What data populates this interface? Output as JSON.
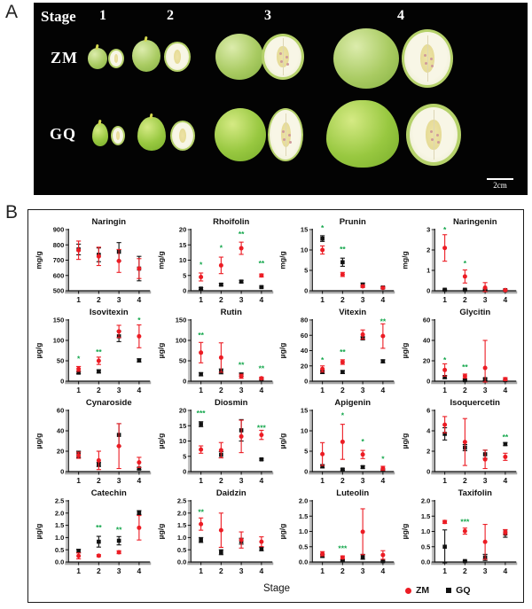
{
  "panel_a": {
    "label": "A",
    "header": "Stage",
    "stage_labels": [
      "1",
      "2",
      "3",
      "4"
    ],
    "rows": [
      {
        "label": "ZM"
      },
      {
        "label": "GQ"
      }
    ],
    "scale_bar": "2cm"
  },
  "panel_b": {
    "label": "B",
    "xlabel": "Stage",
    "legend": [
      {
        "label": "ZM",
        "marker": "circle",
        "color": "#ec1c24"
      },
      {
        "label": "GQ",
        "marker": "square",
        "color": "#111111"
      }
    ]
  },
  "colors": {
    "zm": "#ec1c24",
    "gq": "#111111",
    "significance": "#0fa548"
  },
  "chart_data": [
    {
      "type": "point-errorbar",
      "title": "Naringin",
      "ylabel": "mg/g",
      "ylim": [
        500,
        900
      ],
      "yticks": [
        "500",
        "600",
        "700",
        "800",
        "900"
      ],
      "x": [
        "1",
        "2",
        "3",
        "4"
      ],
      "series": [
        {
          "name": "ZM",
          "values": [
            765,
            725,
            695,
            645
          ],
          "errors": [
            60,
            60,
            75,
            65
          ]
        },
        {
          "name": "GQ",
          "values": [
            770,
            735,
            755,
            645
          ],
          "errors": [
            35,
            45,
            60,
            80
          ]
        }
      ],
      "significance": []
    },
    {
      "type": "point-errorbar",
      "title": "Rhoifolin",
      "ylabel": "mg/g",
      "ylim": [
        0,
        20
      ],
      "yticks": [
        "0",
        "5",
        "10",
        "15",
        "20"
      ],
      "x": [
        "1",
        "2",
        "3",
        "4"
      ],
      "series": [
        {
          "name": "ZM",
          "values": [
            4.5,
            8.3,
            13.9,
            5.0
          ],
          "errors": [
            1.3,
            2.7,
            2.0,
            0.5
          ]
        },
        {
          "name": "GQ",
          "values": [
            0.7,
            2.0,
            3.0,
            1.2
          ],
          "errors": [
            0.3,
            0.4,
            0.4,
            0.3
          ]
        }
      ],
      "significance": [
        {
          "stage": 1,
          "text": "*",
          "y": 8.5
        },
        {
          "stage": 2,
          "text": "*",
          "y": 14
        },
        {
          "stage": 3,
          "text": "**",
          "y": 18.5
        },
        {
          "stage": 4,
          "text": "**",
          "y": 9
        }
      ]
    },
    {
      "type": "point-errorbar",
      "title": "Prunin",
      "ylabel": "mg/g",
      "ylim": [
        0,
        15
      ],
      "yticks": [
        "0",
        "5",
        "10",
        "15"
      ],
      "x": [
        "1",
        "2",
        "3",
        "4"
      ],
      "series": [
        {
          "name": "ZM",
          "values": [
            10,
            4,
            1.1,
            0.7
          ],
          "errors": [
            1.0,
            0.5,
            0.3,
            0.2
          ]
        },
        {
          "name": "GQ",
          "values": [
            12.8,
            7.0,
            1.5,
            0.8
          ],
          "errors": [
            0.7,
            1.0,
            0.4,
            0.2
          ]
        }
      ],
      "significance": [
        {
          "stage": 1,
          "text": "*",
          "y": 15.4
        },
        {
          "stage": 2,
          "text": "**",
          "y": 10.2
        }
      ]
    },
    {
      "type": "point-errorbar",
      "title": "Naringenin",
      "ylabel": "mg/g",
      "ylim": [
        0,
        3
      ],
      "yticks": [
        "0",
        "1",
        "2",
        "3"
      ],
      "x": [
        "1",
        "2",
        "3",
        "4"
      ],
      "series": [
        {
          "name": "ZM",
          "values": [
            2.1,
            0.7,
            0.15,
            0.03
          ],
          "errors": [
            0.65,
            0.32,
            0.25,
            0.02
          ]
        },
        {
          "name": "GQ",
          "values": [
            0.05,
            0.05,
            0.05,
            0.03
          ],
          "errors": [
            0.03,
            0.03,
            0.03,
            0.02
          ]
        }
      ],
      "significance": [
        {
          "stage": 1,
          "text": "*",
          "y": 3.0
        },
        {
          "stage": 2,
          "text": "*",
          "y": 1.35
        }
      ]
    },
    {
      "type": "point-errorbar",
      "title": "Isovitexin",
      "ylabel": "µg/g",
      "ylim": [
        0,
        150
      ],
      "yticks": [
        "0",
        "50",
        "100",
        "150"
      ],
      "x": [
        "1",
        "2",
        "3",
        "4"
      ],
      "series": [
        {
          "name": "ZM",
          "values": [
            30,
            50,
            122,
            110
          ],
          "errors": [
            6,
            9,
            15,
            28
          ]
        },
        {
          "name": "GQ",
          "values": [
            21,
            24,
            110,
            51
          ],
          "errors": [
            3,
            4,
            13,
            4
          ]
        }
      ],
      "significance": [
        {
          "stage": 1,
          "text": "*",
          "y": 55
        },
        {
          "stage": 2,
          "text": "**",
          "y": 72
        },
        {
          "stage": 4,
          "text": "*",
          "y": 150
        }
      ]
    },
    {
      "type": "point-errorbar",
      "title": "Rutin",
      "ylabel": "µg/g",
      "ylim": [
        0,
        150
      ],
      "yticks": [
        "0",
        "50",
        "100",
        "150"
      ],
      "x": [
        "1",
        "2",
        "3",
        "4"
      ],
      "series": [
        {
          "name": "ZM",
          "values": [
            70,
            58,
            12,
            7
          ],
          "errors": [
            25,
            36,
            5,
            3
          ]
        },
        {
          "name": "GQ",
          "values": [
            17,
            24,
            16,
            5
          ],
          "errors": [
            4,
            6,
            4,
            2
          ]
        }
      ],
      "significance": [
        {
          "stage": 1,
          "text": "**",
          "y": 113
        },
        {
          "stage": 3,
          "text": "**",
          "y": 40
        },
        {
          "stage": 4,
          "text": "**",
          "y": 31
        }
      ]
    },
    {
      "type": "point-errorbar",
      "title": "Vitexin",
      "ylabel": "µg/g",
      "ylim": [
        0,
        80
      ],
      "yticks": [
        "0",
        "20",
        "40",
        "60",
        "80"
      ],
      "x": [
        "1",
        "2",
        "3",
        "4"
      ],
      "series": [
        {
          "name": "ZM",
          "values": [
            16,
            25,
            61,
            59
          ],
          "errors": [
            4,
            3,
            6,
            16
          ]
        },
        {
          "name": "GQ",
          "values": [
            12,
            12,
            56,
            26
          ],
          "errors": [
            2,
            2,
            2,
            2
          ]
        }
      ],
      "significance": [
        {
          "stage": 1,
          "text": "*",
          "y": 28
        },
        {
          "stage": 2,
          "text": "**",
          "y": 38
        },
        {
          "stage": 4,
          "text": "**",
          "y": 78
        }
      ]
    },
    {
      "type": "point-errorbar",
      "title": "Glycitin",
      "ylabel": "µg/g",
      "ylim": [
        0,
        60
      ],
      "yticks": [
        "0",
        "20",
        "40",
        "60"
      ],
      "x": [
        "1",
        "2",
        "3",
        "4"
      ],
      "series": [
        {
          "name": "ZM",
          "values": [
            11,
            5,
            13,
            2
          ],
          "errors": [
            6,
            2,
            27,
            1.5
          ]
        },
        {
          "name": "GQ",
          "values": [
            4,
            1,
            2,
            1
          ],
          "errors": [
            1.5,
            0.5,
            1,
            0.5
          ]
        }
      ],
      "significance": [
        {
          "stage": 1,
          "text": "*",
          "y": 21
        },
        {
          "stage": 2,
          "text": "**",
          "y": 14
        }
      ]
    },
    {
      "type": "point-errorbar",
      "title": "Cynaroside",
      "ylabel": "µg/g",
      "ylim": [
        0,
        60
      ],
      "yticks": [
        "0",
        "20",
        "40",
        "60"
      ],
      "x": [
        "1",
        "2",
        "3",
        "4"
      ],
      "series": [
        {
          "name": "ZM",
          "values": [
            16,
            11,
            25,
            9
          ],
          "errors": [
            3,
            9,
            22,
            5
          ]
        },
        {
          "name": "GQ",
          "values": [
            17,
            7,
            36,
            3
          ],
          "errors": [
            3,
            2,
            11,
            1
          ]
        }
      ],
      "significance": []
    },
    {
      "type": "point-errorbar",
      "title": "Diosmin",
      "ylabel": "µg/g",
      "ylim": [
        0,
        20
      ],
      "yticks": [
        "0",
        "5",
        "10",
        "15",
        "20"
      ],
      "x": [
        "1",
        "2",
        "3",
        "4"
      ],
      "series": [
        {
          "name": "ZM",
          "values": [
            7.2,
            7.0,
            11.5,
            12.0
          ],
          "errors": [
            1.2,
            2.5,
            5.3,
            1.5
          ]
        },
        {
          "name": "GQ",
          "values": [
            15.5,
            5.5,
            13.5,
            4.0
          ],
          "errors": [
            0.8,
            1.0,
            3.5,
            0.3
          ]
        }
      ],
      "significance": [
        {
          "stage": 1,
          "text": "***",
          "y": 19.2
        },
        {
          "stage": 4,
          "text": "***",
          "y": 14.3
        }
      ]
    },
    {
      "type": "point-errorbar",
      "title": "Apigenin",
      "ylabel": "µg/g",
      "ylim": [
        0,
        15
      ],
      "yticks": [
        "0",
        "5",
        "10",
        "15"
      ],
      "x": [
        "1",
        "2",
        "3",
        "4"
      ],
      "series": [
        {
          "name": "ZM",
          "values": [
            4.3,
            7.3,
            4.2,
            0.8
          ],
          "errors": [
            2.8,
            4.3,
            1.0,
            0.5
          ]
        },
        {
          "name": "GQ",
          "values": [
            1.3,
            0.5,
            1.1,
            0.4
          ],
          "errors": [
            0.4,
            0.2,
            0.3,
            0.2
          ]
        }
      ],
      "significance": [
        {
          "stage": 2,
          "text": "*",
          "y": 13.8
        },
        {
          "stage": 3,
          "text": "*",
          "y": 7.4
        },
        {
          "stage": 4,
          "text": "*",
          "y": 3.1
        }
      ]
    },
    {
      "type": "point-errorbar",
      "title": "Isoquercetin",
      "ylabel": "µg/g",
      "ylim": [
        0,
        6
      ],
      "yticks": [
        "0",
        "2",
        "4",
        "6"
      ],
      "x": [
        "1",
        "2",
        "3",
        "4"
      ],
      "series": [
        {
          "name": "ZM",
          "values": [
            4.6,
            2.9,
            1.2,
            1.45
          ],
          "errors": [
            0.8,
            2.3,
            0.9,
            0.35
          ]
        },
        {
          "name": "GQ",
          "values": [
            3.7,
            2.35,
            1.7,
            2.7
          ],
          "errors": [
            0.6,
            0.3,
            0.4,
            0.15
          ]
        }
      ],
      "significance": [
        {
          "stage": 4,
          "text": "**",
          "y": 3.4
        }
      ]
    },
    {
      "type": "point-errorbar",
      "title": "Catechin",
      "ylabel": "µg/g",
      "ylim": [
        0,
        2.5
      ],
      "yticks": [
        "0.0",
        "0.5",
        "1.0",
        "1.5",
        "2.0",
        "2.5"
      ],
      "x": [
        "1",
        "2",
        "3",
        "4"
      ],
      "series": [
        {
          "name": "ZM",
          "values": [
            0.25,
            0.26,
            0.4,
            1.4
          ],
          "errors": [
            0.12,
            0.04,
            0.06,
            0.5
          ]
        },
        {
          "name": "GQ",
          "values": [
            0.45,
            0.83,
            0.87,
            2.02
          ],
          "errors": [
            0.07,
            0.22,
            0.17,
            0.08
          ]
        }
      ],
      "significance": [
        {
          "stage": 2,
          "text": "**",
          "y": 1.42
        },
        {
          "stage": 3,
          "text": "**",
          "y": 1.33
        }
      ]
    },
    {
      "type": "point-errorbar",
      "title": "Daidzin",
      "ylabel": "µg/g",
      "ylim": [
        0,
        2.5
      ],
      "yticks": [
        "0.0",
        "0.5",
        "1.0",
        "1.5",
        "2.0",
        "2.5"
      ],
      "x": [
        "1",
        "2",
        "3",
        "4"
      ],
      "series": [
        {
          "name": "ZM",
          "values": [
            1.55,
            1.3,
            0.9,
            0.83
          ],
          "errors": [
            0.25,
            0.7,
            0.33,
            0.2
          ]
        },
        {
          "name": "GQ",
          "values": [
            0.9,
            0.4,
            0.85,
            0.53
          ],
          "errors": [
            0.1,
            0.1,
            0.12,
            0.07
          ]
        }
      ],
      "significance": [
        {
          "stage": 1,
          "text": "**",
          "y": 2.05
        }
      ]
    },
    {
      "type": "point-errorbar",
      "title": "Luteolin",
      "ylabel": "µg/g",
      "ylim": [
        0,
        2.0
      ],
      "yticks": [
        "0.0",
        "0.5",
        "1.0",
        "1.5",
        "2.0"
      ],
      "x": [
        "1",
        "2",
        "3",
        "4"
      ],
      "series": [
        {
          "name": "ZM",
          "values": [
            0.27,
            0.15,
            0.99,
            0.23
          ],
          "errors": [
            0.07,
            0.05,
            0.75,
            0.14
          ]
        },
        {
          "name": "GQ",
          "values": [
            0.2,
            0.05,
            0.17,
            0.03
          ],
          "errors": [
            0.05,
            0.02,
            0.08,
            0.02
          ]
        }
      ],
      "significance": [
        {
          "stage": 2,
          "text": "***",
          "y": 0.45
        }
      ]
    },
    {
      "type": "point-errorbar",
      "title": "Taxifolin",
      "ylabel": "µg/g",
      "ylim": [
        0,
        2.0
      ],
      "yticks": [
        "0.0",
        "0.5",
        "1.0",
        "1.5",
        "2.0"
      ],
      "x": [
        "1",
        "2",
        "3",
        "4"
      ],
      "series": [
        {
          "name": "ZM",
          "values": [
            1.31,
            1.01,
            0.66,
            0.98
          ],
          "errors": [
            0.05,
            0.1,
            0.57,
            0.08
          ]
        },
        {
          "name": "GQ",
          "values": [
            0.5,
            0.03,
            0.15,
            0.93
          ],
          "errors": [
            0.55,
            0.02,
            0.1,
            0.12
          ]
        }
      ],
      "significance": [
        {
          "stage": 2,
          "text": "***",
          "y": 1.32
        }
      ]
    }
  ]
}
